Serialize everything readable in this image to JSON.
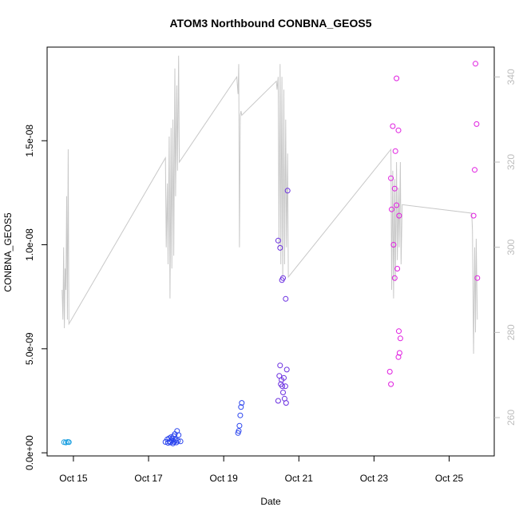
{
  "chart_data": {
    "type": "scatter",
    "title": "ATOM3 Northbound CONBNA_GEOS5",
    "xlabel": "Date",
    "ylabel": "CONBNA_GEOS5",
    "x_unit": "days in October (day-of-month)",
    "xlim": [
      14.3,
      26.2
    ],
    "ylim": [
      -1.5e-10,
      1.95e-08
    ],
    "y2lim": [
      251,
      347
    ],
    "x_ticks": [
      {
        "value": 15,
        "label": "Oct 15"
      },
      {
        "value": 17,
        "label": "Oct 17"
      },
      {
        "value": 19,
        "label": "Oct 19"
      },
      {
        "value": 21,
        "label": "Oct 21"
      },
      {
        "value": 23,
        "label": "Oct 23"
      },
      {
        "value": 25,
        "label": "Oct 25"
      }
    ],
    "y_ticks": [
      {
        "value": 0,
        "label": "0.0e+00"
      },
      {
        "value": 5e-09,
        "label": "5.0e-09"
      },
      {
        "value": 1e-08,
        "label": "1.0e-08"
      },
      {
        "value": 1.5e-08,
        "label": "1.5e-08"
      }
    ],
    "y2_ticks": [
      {
        "value": 260,
        "label": "260"
      },
      {
        "value": 280,
        "label": "280"
      },
      {
        "value": 300,
        "label": "300"
      },
      {
        "value": 320,
        "label": "320"
      },
      {
        "value": 340,
        "label": "340"
      }
    ],
    "grid": false,
    "series": [
      {
        "color": "#1a9fe0",
        "points": [
          [
            14.75,
            5.1e-10
          ],
          [
            14.8,
            5e-10
          ],
          [
            14.85,
            5.2e-10
          ],
          [
            14.88,
            5.1e-10
          ]
        ]
      },
      {
        "color": "#2a44ee",
        "points": [
          [
            17.45,
            5.2e-10
          ],
          [
            17.5,
            6.5e-10
          ],
          [
            17.52,
            4.8e-10
          ],
          [
            17.55,
            7e-10
          ],
          [
            17.57,
            5.5e-10
          ],
          [
            17.6,
            7.5e-10
          ],
          [
            17.62,
            6e-10
          ],
          [
            17.65,
            4.5e-10
          ],
          [
            17.67,
            8e-10
          ],
          [
            17.7,
            9e-10
          ],
          [
            17.72,
            6.2e-10
          ],
          [
            17.74,
            5e-10
          ],
          [
            17.76,
            1.05e-09
          ],
          [
            17.78,
            5.8e-10
          ],
          [
            17.8,
            8.5e-10
          ],
          [
            17.85,
            5.5e-10
          ],
          [
            17.58,
            5e-10
          ],
          [
            17.63,
            6.8e-10
          ],
          [
            17.68,
            5.2e-10
          ],
          [
            19.38,
            9.5e-10
          ],
          [
            19.4,
            1.05e-09
          ],
          [
            19.42,
            1.3e-09
          ],
          [
            19.44,
            1.8e-09
          ],
          [
            19.46,
            2.2e-09
          ],
          [
            19.48,
            2.4e-09
          ]
        ]
      },
      {
        "color": "#6a2ee0",
        "points": [
          [
            20.45,
            2.5e-09
          ],
          [
            20.48,
            3.7e-09
          ],
          [
            20.5,
            4.2e-09
          ],
          [
            20.52,
            3.3e-09
          ],
          [
            20.54,
            3.5e-09
          ],
          [
            20.56,
            3.2e-09
          ],
          [
            20.58,
            2.9e-09
          ],
          [
            20.6,
            3.6e-09
          ],
          [
            20.62,
            2.6e-09
          ],
          [
            20.64,
            3.2e-09
          ],
          [
            20.66,
            2.4e-09
          ],
          [
            20.68,
            4e-09
          ],
          [
            20.45,
            1.02e-08
          ],
          [
            20.5,
            9.85e-09
          ],
          [
            20.55,
            8.3e-09
          ],
          [
            20.58,
            8.4e-09
          ],
          [
            20.65,
            7.4e-09
          ],
          [
            20.7,
            1.26e-08
          ]
        ]
      },
      {
        "color": "#e01ee0",
        "points": [
          [
            23.42,
            3.9e-09
          ],
          [
            23.45,
            3.3e-09
          ],
          [
            23.45,
            1.32e-08
          ],
          [
            23.47,
            1.17e-08
          ],
          [
            23.5,
            1.57e-08
          ],
          [
            23.52,
            1e-08
          ],
          [
            23.55,
            1.27e-08
          ],
          [
            23.55,
            8.4e-09
          ],
          [
            23.57,
            1.45e-08
          ],
          [
            23.6,
            1.19e-08
          ],
          [
            23.6,
            1.8e-08
          ],
          [
            23.62,
            8.85e-09
          ],
          [
            23.65,
            1.55e-08
          ],
          [
            23.67,
            1.14e-08
          ],
          [
            23.65,
            4.6e-09
          ],
          [
            23.68,
            4.8e-09
          ],
          [
            23.66,
            5.85e-09
          ],
          [
            23.7,
            5.5e-09
          ],
          [
            25.65,
            1.14e-08
          ],
          [
            25.68,
            1.36e-08
          ],
          [
            25.7,
            1.87e-08
          ],
          [
            25.73,
            1.58e-08
          ],
          [
            25.75,
            8.4e-09
          ]
        ]
      }
    ],
    "temperature_line": {
      "color": "#c8c8c8",
      "points": [
        [
          14.7,
          290
        ],
        [
          14.72,
          283
        ],
        [
          14.74,
          300
        ],
        [
          14.76,
          281
        ],
        [
          14.78,
          295
        ],
        [
          14.8,
          290
        ],
        [
          14.82,
          312
        ],
        [
          14.84,
          283
        ],
        [
          14.86,
          323
        ],
        [
          14.88,
          282
        ],
        [
          17.45,
          321
        ],
        [
          17.47,
          300
        ],
        [
          17.5,
          315
        ],
        [
          17.52,
          296
        ],
        [
          17.55,
          326
        ],
        [
          17.57,
          288
        ],
        [
          17.6,
          328
        ],
        [
          17.62,
          295
        ],
        [
          17.65,
          330
        ],
        [
          17.67,
          298
        ],
        [
          17.7,
          342
        ],
        [
          17.72,
          312
        ],
        [
          17.75,
          338
        ],
        [
          17.77,
          318
        ],
        [
          17.8,
          345
        ],
        [
          17.82,
          320
        ],
        [
          19.35,
          340
        ],
        [
          19.38,
          336
        ],
        [
          19.4,
          343
        ],
        [
          19.42,
          300
        ],
        [
          19.44,
          331
        ],
        [
          19.46,
          332
        ],
        [
          19.48,
          331
        ],
        [
          20.4,
          339
        ],
        [
          20.42,
          337
        ],
        [
          20.45,
          340
        ],
        [
          20.47,
          300
        ],
        [
          20.5,
          343
        ],
        [
          20.52,
          296
        ],
        [
          20.55,
          340
        ],
        [
          20.57,
          293
        ],
        [
          20.6,
          337
        ],
        [
          20.62,
          296
        ],
        [
          20.65,
          330
        ],
        [
          20.67,
          300
        ],
        [
          20.7,
          322
        ],
        [
          20.72,
          293
        ],
        [
          23.45,
          323
        ],
        [
          23.47,
          290
        ],
        [
          23.5,
          318
        ],
        [
          23.52,
          288
        ],
        [
          23.55,
          316
        ],
        [
          23.57,
          292
        ],
        [
          23.6,
          320
        ],
        [
          23.62,
          297
        ],
        [
          23.65,
          314
        ],
        [
          23.67,
          300
        ],
        [
          23.7,
          320
        ],
        [
          23.72,
          296
        ],
        [
          23.75,
          310
        ],
        [
          25.6,
          308
        ],
        [
          25.62,
          304
        ],
        [
          25.65,
          275
        ],
        [
          25.68,
          300
        ],
        [
          25.7,
          280
        ],
        [
          25.72,
          302
        ],
        [
          25.75,
          283
        ]
      ]
    }
  }
}
